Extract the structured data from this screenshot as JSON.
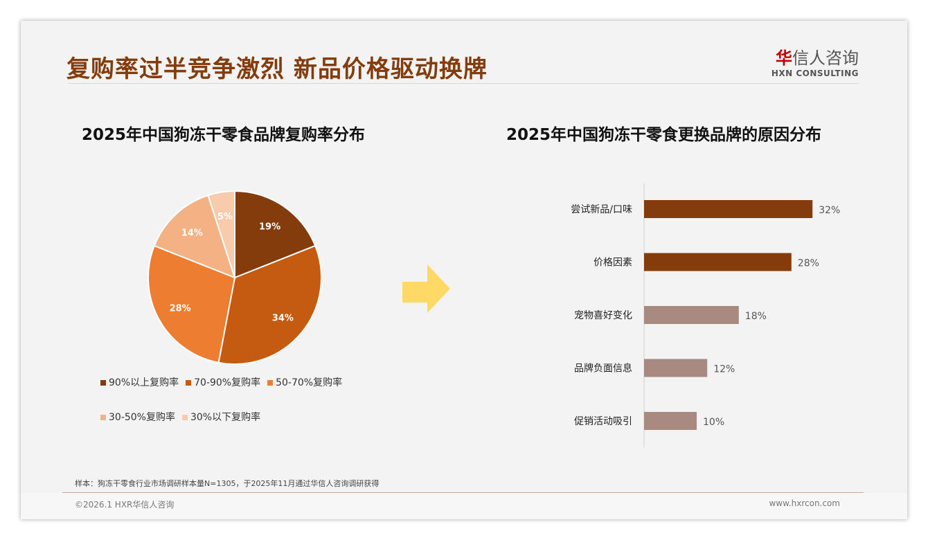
{
  "header": {
    "title": "复购率过半竞争激烈 新品价格驱动换牌",
    "logo_cn_red": "华",
    "logo_cn": "信人咨询",
    "logo_en": "HXN CONSULTING"
  },
  "colors": {
    "accent": "#843C0C",
    "bar_dark": "#843C0C",
    "bar_light": "#A98A80",
    "arrow": "#FFD966"
  },
  "chart_data": [
    {
      "type": "pie",
      "title": "2025年中国狗冻干零食品牌复购率分布",
      "categories": [
        "90%以上复购率",
        "70-90%复购率",
        "50-70%复购率",
        "30-50%复购率",
        "30%以下复购率"
      ],
      "values": [
        19,
        34,
        28,
        14,
        5
      ],
      "labels": [
        "19%",
        "34%",
        "28%",
        "14%",
        "5%"
      ],
      "colors": [
        "#843C0C",
        "#C55A11",
        "#ED7D31",
        "#F4B183",
        "#F8CBAD"
      ],
      "legend": "bottom"
    },
    {
      "type": "bar",
      "orientation": "horizontal",
      "title": "2025年中国狗冻干零食更换品牌的原因分布",
      "categories": [
        "尝试新品/口味",
        "价格因素",
        "宠物喜好变化",
        "品牌负面信息",
        "促销活动吸引"
      ],
      "values": [
        32,
        28,
        18,
        12,
        10
      ],
      "labels": [
        "32%",
        "28%",
        "18%",
        "12%",
        "10%"
      ],
      "colors": [
        "#843C0C",
        "#843C0C",
        "#A98A80",
        "#A98A80",
        "#A98A80"
      ],
      "xlim": [
        0,
        40
      ]
    }
  ],
  "footer": {
    "note": "样本：狗冻干零食行业市场调研样本量N=1305，于2025年11月通过华信人咨询调研获得",
    "copyright": "©2026.1 HXR华信人咨询",
    "url": "www.hxrcon.com"
  }
}
